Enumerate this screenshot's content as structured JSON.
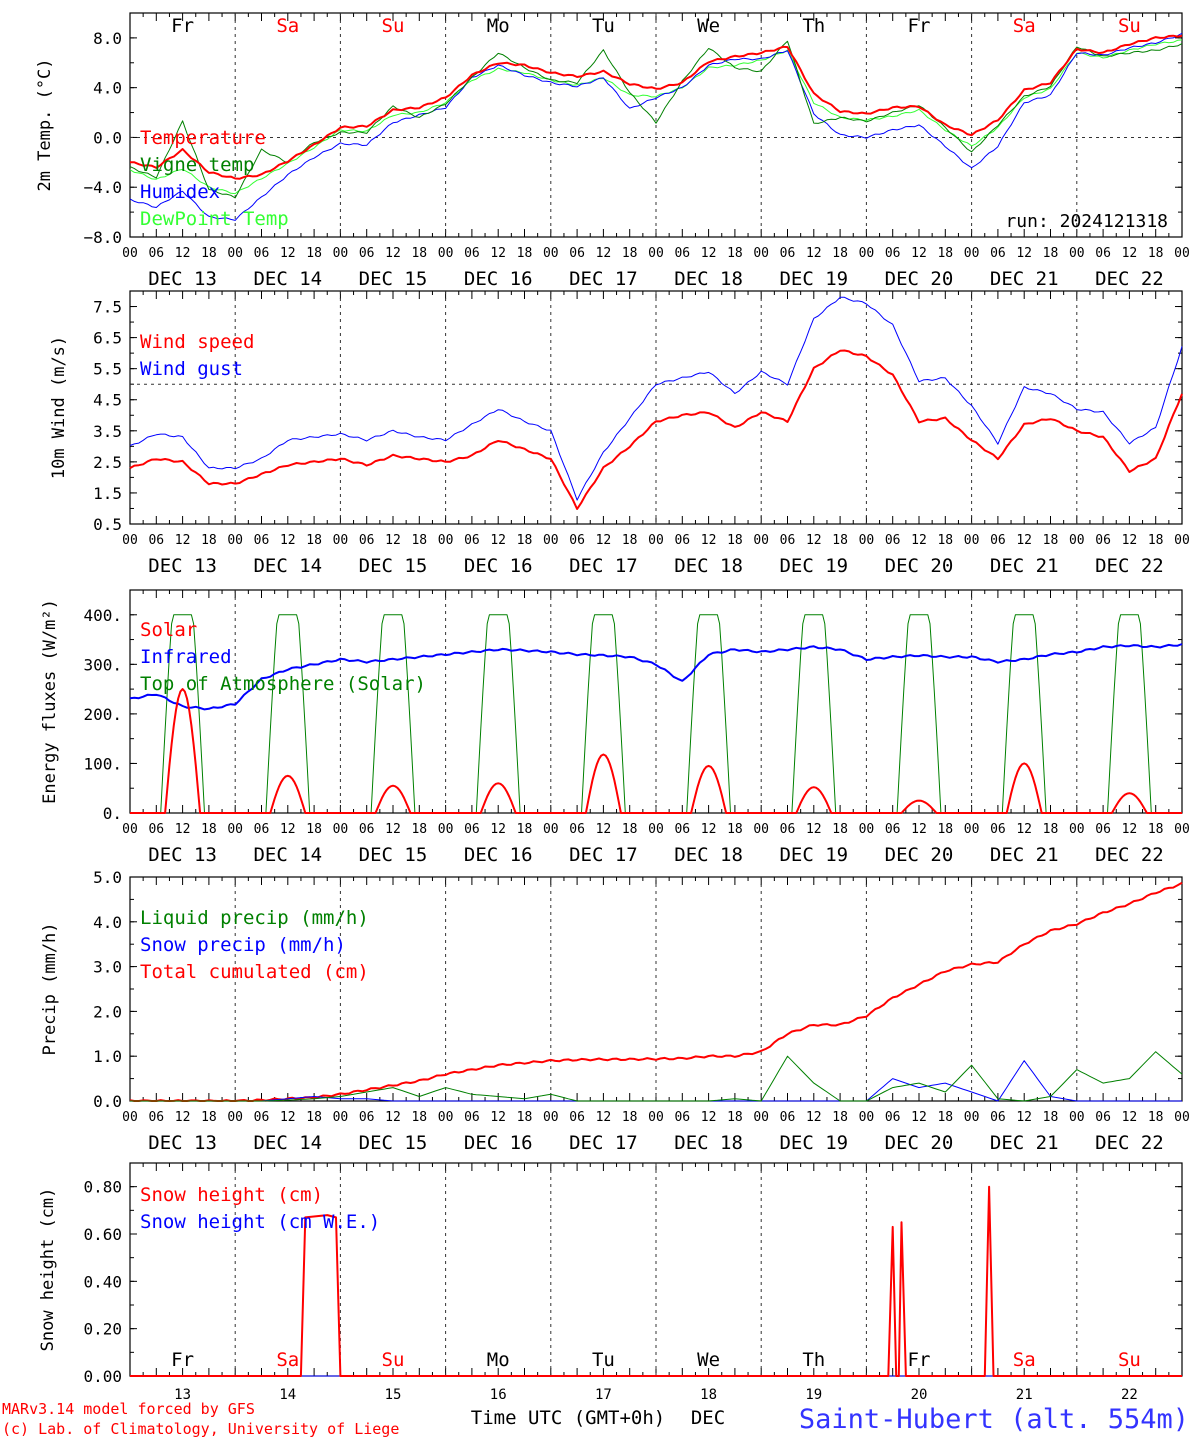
{
  "days": [
    "DEC 13",
    "DEC 14",
    "DEC 15",
    "DEC 16",
    "DEC 17",
    "DEC 18",
    "DEC 19",
    "DEC 20",
    "DEC 21",
    "DEC 22"
  ],
  "hour_ticks": [
    "00",
    "06",
    "12",
    "18"
  ],
  "last_hour_tick": "00",
  "weekdays": [
    {
      "label": "Fr",
      "color": "#000000"
    },
    {
      "label": "Sa",
      "color": "#ff0000"
    },
    {
      "label": "Su",
      "color": "#ff0000"
    },
    {
      "label": "Mo",
      "color": "#000000"
    },
    {
      "label": "Tu",
      "color": "#000000"
    },
    {
      "label": "We",
      "color": "#000000"
    },
    {
      "label": "Th",
      "color": "#000000"
    },
    {
      "label": "Fr",
      "color": "#000000"
    },
    {
      "label": "Sa",
      "color": "#ff0000"
    },
    {
      "label": "Su",
      "color": "#ff0000"
    }
  ],
  "day_numbers": [
    "13",
    "14",
    "15",
    "16",
    "17",
    "18",
    "19",
    "20",
    "21",
    "22"
  ],
  "xlabel": "Time UTC (GMT+0h)",
  "xlabel_suffix": "DEC",
  "footer": {
    "model": "MARv3.14 model forced by GFS",
    "copyright": "(c) Lab. of Climatology, University of Liege",
    "station": "Saint-Hubert (alt. 554m)"
  },
  "colors": {
    "red": "#ff0000",
    "green": "#008000",
    "blue": "#0000ff",
    "lightgreen": "#33ff33",
    "grey": "#555555"
  },
  "chart_data": [
    {
      "type": "line",
      "ylabel": "2m Temp. (°C)",
      "ylim": [
        -8,
        10
      ],
      "yticks": [
        -8,
        -4,
        0,
        4,
        8
      ],
      "ytick_labels": [
        "−8.0",
        "−4.0",
        "0.0",
        "4.0",
        "8.0"
      ],
      "ref_line": 0,
      "annotation": "run: 2024121318",
      "x_hours": [
        0,
        6,
        12,
        18,
        24,
        30,
        36,
        42,
        48,
        54,
        60,
        66,
        72,
        78,
        84,
        90,
        96,
        102,
        108,
        114,
        120,
        126,
        132,
        138,
        144,
        150,
        156,
        162,
        168,
        174,
        180,
        186,
        192,
        198,
        204,
        210,
        216,
        222,
        228,
        234,
        240
      ],
      "series": [
        {
          "name": "Temperature",
          "color": "#ff0000",
          "width": 2,
          "values": [
            -2.0,
            -2.4,
            -1.0,
            -2.8,
            -3.3,
            -3.0,
            -1.9,
            -0.6,
            0.8,
            0.9,
            2.2,
            2.4,
            3.2,
            5.0,
            6.0,
            5.8,
            5.2,
            4.9,
            5.3,
            4.3,
            3.9,
            4.4,
            6.1,
            6.5,
            6.8,
            7.3,
            3.5,
            2.1,
            1.9,
            2.4,
            2.5,
            1.0,
            0.2,
            1.4,
            3.8,
            4.4,
            7.1,
            6.8,
            7.5,
            8.0,
            8.2
          ]
        },
        {
          "name": "Vigne temp",
          "color": "#008000",
          "width": 1,
          "values": [
            -2.4,
            -3.2,
            1.3,
            -4.2,
            -4.8,
            -1.0,
            -2.0,
            -0.4,
            0.4,
            0.4,
            2.5,
            1.6,
            2.7,
            4.8,
            6.8,
            5.6,
            4.6,
            4.4,
            7.0,
            3.6,
            1.2,
            4.5,
            7.2,
            5.6,
            5.3,
            7.8,
            1.1,
            1.6,
            1.3,
            2.0,
            2.6,
            0.8,
            -1.2,
            1.0,
            3.3,
            4.1,
            7.3,
            6.5,
            6.8,
            7.0,
            7.5
          ]
        },
        {
          "name": "Humidex",
          "color": "#0000ff",
          "width": 1,
          "values": [
            -5.0,
            -5.6,
            -4.3,
            -6.4,
            -6.6,
            -4.8,
            -3.0,
            -1.6,
            -0.5,
            -0.6,
            1.2,
            1.8,
            2.4,
            4.8,
            5.8,
            5.0,
            4.4,
            4.1,
            4.8,
            2.3,
            3.2,
            4.0,
            5.8,
            6.3,
            6.3,
            7.0,
            1.9,
            0.2,
            0.0,
            0.6,
            1.0,
            -0.7,
            -2.5,
            -0.7,
            2.8,
            3.4,
            6.8,
            6.6,
            7.2,
            7.6,
            8.3
          ]
        },
        {
          "name": "DewPoint Temp",
          "color": "#33ff33",
          "width": 1,
          "values": [
            -2.6,
            -3.4,
            -2.5,
            -4.0,
            -4.5,
            -3.3,
            -2.1,
            -0.8,
            0.6,
            0.5,
            1.8,
            2.0,
            2.8,
            4.6,
            5.5,
            5.2,
            4.6,
            4.2,
            4.8,
            3.4,
            3.3,
            4.0,
            5.6,
            5.8,
            6.2,
            7.0,
            2.8,
            1.6,
            1.4,
            1.7,
            2.2,
            0.6,
            -0.7,
            0.8,
            3.2,
            3.9,
            6.8,
            6.4,
            7.0,
            7.5,
            7.8
          ]
        }
      ]
    },
    {
      "type": "line",
      "ylabel": "10m Wind (m/s)",
      "ylim": [
        0.5,
        8.0
      ],
      "yticks": [
        0.5,
        1.5,
        2.5,
        3.5,
        4.5,
        5.5,
        6.5,
        7.5
      ],
      "ytick_labels": [
        "0.5",
        "1.5",
        "2.5",
        "3.5",
        "4.5",
        "5.5",
        "6.5",
        "7.5"
      ],
      "ref_line": 5.0,
      "annotation": "",
      "x_hours": [
        0,
        6,
        12,
        18,
        24,
        30,
        36,
        42,
        48,
        54,
        60,
        66,
        72,
        78,
        84,
        90,
        96,
        102,
        108,
        114,
        120,
        126,
        132,
        138,
        144,
        150,
        156,
        162,
        168,
        174,
        180,
        186,
        192,
        198,
        204,
        210,
        216,
        222,
        228,
        234,
        240
      ],
      "series": [
        {
          "name": "Wind speed",
          "color": "#ff0000",
          "width": 2,
          "values": [
            2.3,
            2.6,
            2.5,
            1.8,
            1.8,
            2.1,
            2.4,
            2.5,
            2.6,
            2.4,
            2.7,
            2.6,
            2.5,
            2.7,
            3.2,
            2.9,
            2.6,
            1.0,
            2.3,
            3.0,
            3.8,
            4.0,
            4.1,
            3.6,
            4.1,
            3.8,
            5.5,
            6.1,
            5.9,
            5.3,
            3.8,
            3.9,
            3.2,
            2.6,
            3.7,
            3.9,
            3.5,
            3.3,
            2.2,
            2.6,
            4.7
          ]
        },
        {
          "name": "Wind gust",
          "color": "#0000ff",
          "width": 1,
          "values": [
            3.0,
            3.4,
            3.3,
            2.3,
            2.3,
            2.6,
            3.2,
            3.3,
            3.4,
            3.2,
            3.5,
            3.3,
            3.2,
            3.7,
            4.2,
            3.8,
            3.5,
            1.3,
            2.8,
            3.9,
            5.0,
            5.2,
            5.4,
            4.7,
            5.4,
            5.0,
            7.1,
            7.8,
            7.6,
            6.9,
            5.1,
            5.2,
            4.3,
            3.1,
            4.9,
            4.7,
            4.2,
            4.1,
            3.1,
            3.6,
            6.2
          ]
        }
      ]
    },
    {
      "type": "line",
      "ylabel": "Energy fluxes (W/m²)",
      "ylim": [
        0,
        450
      ],
      "yticks": [
        0,
        100,
        200,
        300,
        400
      ],
      "ytick_labels": [
        "0.",
        "100.",
        "200.",
        "300.",
        "400."
      ],
      "ref_line": null,
      "annotation": "",
      "solar_peaks": [
        250,
        75,
        55,
        60,
        118,
        95,
        52,
        25,
        100,
        40
      ],
      "toa_peak": 400,
      "x_hours": [
        0,
        6,
        12,
        18,
        24,
        30,
        36,
        42,
        48,
        54,
        60,
        66,
        72,
        78,
        84,
        90,
        96,
        102,
        108,
        114,
        120,
        126,
        132,
        138,
        144,
        150,
        156,
        162,
        168,
        174,
        180,
        186,
        192,
        198,
        204,
        210,
        216,
        222,
        228,
        234,
        240
      ],
      "series": [
        {
          "name": "Solar",
          "color": "#ff0000",
          "width": 2,
          "values": []
        },
        {
          "name": "Infrared",
          "color": "#0000ff",
          "width": 2,
          "values": [
            230,
            240,
            215,
            210,
            220,
            270,
            290,
            300,
            310,
            305,
            310,
            315,
            320,
            325,
            330,
            328,
            325,
            320,
            318,
            315,
            300,
            265,
            320,
            330,
            325,
            330,
            335,
            330,
            310,
            315,
            318,
            315,
            315,
            305,
            310,
            320,
            325,
            335,
            338,
            335,
            340
          ]
        },
        {
          "name": "Top of Atmosphere (Solar)",
          "color": "#008000",
          "width": 1,
          "values": []
        }
      ]
    },
    {
      "type": "line",
      "ylabel": "Precip (mm/h)",
      "ylim": [
        0,
        5.0
      ],
      "yticks": [
        0,
        1,
        2,
        3,
        4,
        5
      ],
      "ytick_labels": [
        "0.0",
        "1.0",
        "2.0",
        "3.0",
        "4.0",
        "5.0"
      ],
      "ref_line": null,
      "annotation": "",
      "x_hours": [
        0,
        6,
        12,
        18,
        24,
        30,
        36,
        42,
        48,
        54,
        60,
        66,
        72,
        78,
        84,
        90,
        96,
        102,
        108,
        114,
        120,
        126,
        132,
        138,
        144,
        150,
        156,
        162,
        168,
        174,
        180,
        186,
        192,
        198,
        204,
        210,
        216,
        222,
        228,
        234,
        240
      ],
      "series": [
        {
          "name": "Liquid precip (mm/h)",
          "color": "#008000",
          "width": 1,
          "values": [
            0,
            0,
            0,
            0,
            0,
            0,
            0.02,
            0.05,
            0.1,
            0.2,
            0.3,
            0.1,
            0.3,
            0.15,
            0.1,
            0.05,
            0.15,
            0,
            0,
            0,
            0,
            0,
            0,
            0.05,
            0,
            1.0,
            0.4,
            0,
            0,
            0.3,
            0.4,
            0.2,
            0.8,
            0.05,
            0,
            0.1,
            0.7,
            0.4,
            0.5,
            1.1,
            0.6
          ]
        },
        {
          "name": "Snow precip (mm/h)",
          "color": "#0000ff",
          "width": 1,
          "values": [
            0,
            0,
            0,
            0,
            0,
            0,
            0.05,
            0.1,
            0.05,
            0.05,
            0,
            0,
            0,
            0,
            0,
            0,
            0,
            0,
            0,
            0,
            0,
            0,
            0,
            0,
            0,
            0,
            0,
            0,
            0,
            0.5,
            0.3,
            0.4,
            0.2,
            0,
            0.9,
            0.1,
            0,
            0,
            0,
            0,
            0
          ]
        },
        {
          "name": "Total cumulated (cm)",
          "color": "#ff0000",
          "width": 2,
          "values": [
            0,
            0,
            0,
            0,
            0,
            0.02,
            0.05,
            0.08,
            0.15,
            0.25,
            0.35,
            0.45,
            0.6,
            0.7,
            0.8,
            0.85,
            0.9,
            0.92,
            0.93,
            0.93,
            0.94,
            0.95,
            1.0,
            1.0,
            1.1,
            1.5,
            1.7,
            1.7,
            1.9,
            2.3,
            2.6,
            2.9,
            3.05,
            3.1,
            3.5,
            3.8,
            3.95,
            4.2,
            4.4,
            4.65,
            4.85
          ]
        }
      ]
    },
    {
      "type": "line",
      "ylabel": "Snow height (cm)",
      "ylim": [
        0,
        0.9
      ],
      "yticks": [
        0,
        0.2,
        0.4,
        0.6,
        0.8
      ],
      "ytick_labels": [
        "0.00",
        "0.20",
        "0.40",
        "0.60",
        "0.80"
      ],
      "ref_line": null,
      "annotation": "",
      "series": [
        {
          "name": "Snow height (cm)",
          "color": "#ff0000",
          "width": 2,
          "points": [
            [
              0,
              0
            ],
            [
              39,
              0
            ],
            [
              40,
              0.67
            ],
            [
              45,
              0.68
            ],
            [
              47,
              0.67
            ],
            [
              48,
              0
            ],
            [
              173,
              0
            ],
            [
              174,
              0.63
            ],
            [
              174.8,
              0
            ],
            [
              175.4,
              0
            ],
            [
              176,
              0.65
            ],
            [
              177,
              0
            ],
            [
              195,
              0
            ],
            [
              196,
              0.8
            ],
            [
              197,
              0
            ],
            [
              240,
              0
            ]
          ]
        },
        {
          "name": "Snow height (cm W.E.)",
          "color": "#0000ff",
          "width": 1,
          "points": [
            [
              0,
              0
            ],
            [
              240,
              0
            ]
          ]
        }
      ]
    }
  ]
}
